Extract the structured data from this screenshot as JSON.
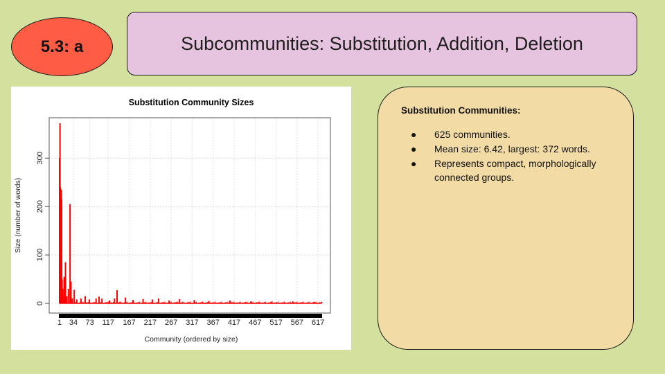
{
  "slide": {
    "badge": "5.3: a",
    "title": "Subcommunities: Substitution, Addition, Deletion",
    "colors": {
      "background": "#d3e09e",
      "badge": "#ff5c45",
      "title_box": "#e6c3de",
      "info_box": "#f2dba5"
    }
  },
  "info": {
    "heading": "Substitution Communities:",
    "bullets": [
      "625 communities.",
      "Mean size: 6.42, largest: 372 words.",
      "Represents compact, morphologically connected groups."
    ]
  },
  "chart_data": {
    "type": "bar",
    "title": "Substitution Community Sizes",
    "xlabel": "Community (ordered by size)",
    "ylabel": "Size (number of words)",
    "xlim": [
      1,
      625
    ],
    "ylim": [
      0,
      372
    ],
    "y_ticks": [
      0,
      100,
      200,
      300
    ],
    "x_tick_labels": [
      "1",
      "34",
      "73",
      "117",
      "167",
      "217",
      "267",
      "317",
      "367",
      "417",
      "467",
      "517",
      "567",
      "617"
    ],
    "grid": true,
    "bar_color": "#ff0000",
    "points": [
      {
        "x": 1,
        "y": 300
      },
      {
        "x": 2,
        "y": 372
      },
      {
        "x": 3,
        "y": 240
      },
      {
        "x": 4,
        "y": 75
      },
      {
        "x": 5,
        "y": 235
      },
      {
        "x": 6,
        "y": 215
      },
      {
        "x": 7,
        "y": 50
      },
      {
        "x": 9,
        "y": 30
      },
      {
        "x": 12,
        "y": 55
      },
      {
        "x": 15,
        "y": 85
      },
      {
        "x": 18,
        "y": 15
      },
      {
        "x": 22,
        "y": 30
      },
      {
        "x": 26,
        "y": 205
      },
      {
        "x": 28,
        "y": 45
      },
      {
        "x": 31,
        "y": 10
      },
      {
        "x": 36,
        "y": 28
      },
      {
        "x": 42,
        "y": 8
      },
      {
        "x": 52,
        "y": 10
      },
      {
        "x": 62,
        "y": 15
      },
      {
        "x": 72,
        "y": 8
      },
      {
        "x": 88,
        "y": 10
      },
      {
        "x": 95,
        "y": 14
      },
      {
        "x": 102,
        "y": 10
      },
      {
        "x": 120,
        "y": 6
      },
      {
        "x": 132,
        "y": 10
      },
      {
        "x": 138,
        "y": 27
      },
      {
        "x": 158,
        "y": 12
      },
      {
        "x": 176,
        "y": 7
      },
      {
        "x": 200,
        "y": 9
      },
      {
        "x": 222,
        "y": 8
      },
      {
        "x": 237,
        "y": 10
      },
      {
        "x": 262,
        "y": 6
      },
      {
        "x": 287,
        "y": 9
      },
      {
        "x": 322,
        "y": 7
      },
      {
        "x": 357,
        "y": 5
      },
      {
        "x": 407,
        "y": 6
      },
      {
        "x": 457,
        "y": 4
      },
      {
        "x": 507,
        "y": 4
      },
      {
        "x": 557,
        "y": 4
      },
      {
        "x": 607,
        "y": 3
      },
      {
        "x": 625,
        "y": 3
      }
    ]
  }
}
